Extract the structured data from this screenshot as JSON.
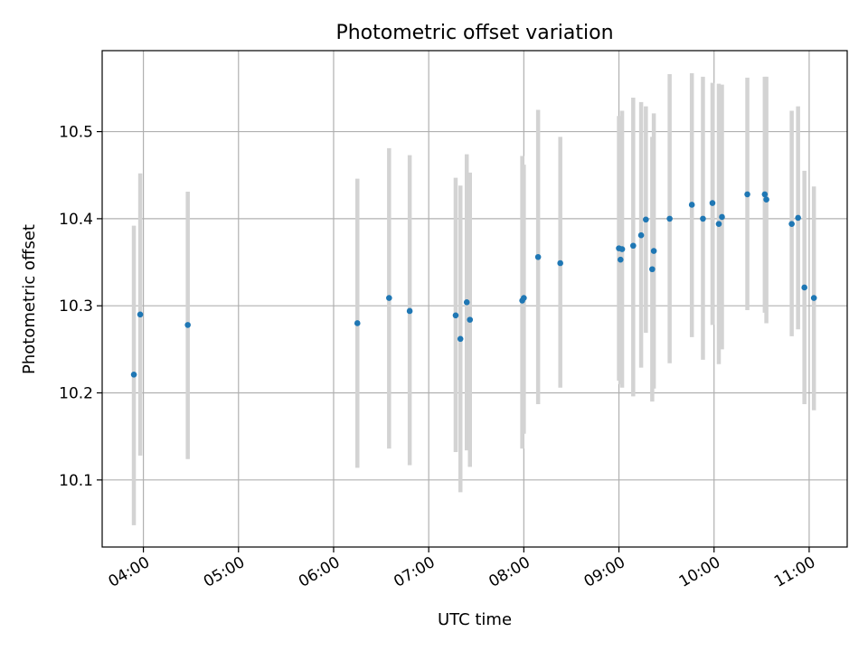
{
  "chart_data": {
    "type": "scatter",
    "title": "Photometric offset variation",
    "xlabel": "UTC time",
    "ylabel": "Photometric offset",
    "x_axis": {
      "kind": "time",
      "range": [
        "03:34",
        "11:24"
      ],
      "ticks": [
        "04:00",
        "05:00",
        "06:00",
        "07:00",
        "08:00",
        "09:00",
        "10:00",
        "11:00"
      ]
    },
    "y_axis": {
      "range": [
        10.023,
        10.593
      ],
      "ticks": [
        10.1,
        10.2,
        10.3,
        10.4,
        10.5
      ],
      "tick_labels": [
        "10.1",
        "10.2",
        "10.3",
        "10.4",
        "10.5"
      ]
    },
    "grid": true,
    "colors": {
      "point": "#1f77b4",
      "errorbar": "#d3d3d3"
    },
    "series": [
      {
        "points": [
          {
            "t": "03:54",
            "y": 10.221,
            "lo": 10.048,
            "hi": 10.392
          },
          {
            "t": "03:58",
            "y": 10.29,
            "lo": 10.128,
            "hi": 10.452
          },
          {
            "t": "04:28",
            "y": 10.278,
            "lo": 10.124,
            "hi": 10.431
          },
          {
            "t": "06:15",
            "y": 10.28,
            "lo": 10.114,
            "hi": 10.446
          },
          {
            "t": "06:35",
            "y": 10.309,
            "lo": 10.136,
            "hi": 10.481
          },
          {
            "t": "06:48",
            "y": 10.294,
            "lo": 10.117,
            "hi": 10.473
          },
          {
            "t": "07:17",
            "y": 10.289,
            "lo": 10.132,
            "hi": 10.447
          },
          {
            "t": "07:20",
            "y": 10.262,
            "lo": 10.086,
            "hi": 10.438
          },
          {
            "t": "07:24",
            "y": 10.304,
            "lo": 10.134,
            "hi": 10.474
          },
          {
            "t": "07:26",
            "y": 10.284,
            "lo": 10.115,
            "hi": 10.453
          },
          {
            "t": "07:59",
            "y": 10.306,
            "lo": 10.136,
            "hi": 10.472
          },
          {
            "t": "08:00",
            "y": 10.309,
            "lo": 10.153,
            "hi": 10.462
          },
          {
            "t": "08:09",
            "y": 10.356,
            "lo": 10.187,
            "hi": 10.525
          },
          {
            "t": "08:23",
            "y": 10.349,
            "lo": 10.206,
            "hi": 10.494
          },
          {
            "t": "09:00",
            "y": 10.366,
            "lo": 10.214,
            "hi": 10.518
          },
          {
            "t": "09:01",
            "y": 10.353,
            "lo": 10.21,
            "hi": 10.497
          },
          {
            "t": "09:02",
            "y": 10.365,
            "lo": 10.206,
            "hi": 10.524
          },
          {
            "t": "09:09",
            "y": 10.369,
            "lo": 10.196,
            "hi": 10.539
          },
          {
            "t": "09:14",
            "y": 10.381,
            "lo": 10.229,
            "hi": 10.534
          },
          {
            "t": "09:17",
            "y": 10.399,
            "lo": 10.269,
            "hi": 10.529
          },
          {
            "t": "09:21",
            "y": 10.342,
            "lo": 10.19,
            "hi": 10.494
          },
          {
            "t": "09:22",
            "y": 10.363,
            "lo": 10.205,
            "hi": 10.521
          },
          {
            "t": "09:32",
            "y": 10.4,
            "lo": 10.234,
            "hi": 10.566
          },
          {
            "t": "09:46",
            "y": 10.416,
            "lo": 10.264,
            "hi": 10.567
          },
          {
            "t": "09:53",
            "y": 10.4,
            "lo": 10.238,
            "hi": 10.563
          },
          {
            "t": "09:59",
            "y": 10.418,
            "lo": 10.278,
            "hi": 10.556
          },
          {
            "t": "10:03",
            "y": 10.394,
            "lo": 10.233,
            "hi": 10.555
          },
          {
            "t": "10:05",
            "y": 10.402,
            "lo": 10.25,
            "hi": 10.554
          },
          {
            "t": "10:21",
            "y": 10.428,
            "lo": 10.295,
            "hi": 10.562
          },
          {
            "t": "10:32",
            "y": 10.428,
            "lo": 10.292,
            "hi": 10.563
          },
          {
            "t": "10:33",
            "y": 10.422,
            "lo": 10.28,
            "hi": 10.563
          },
          {
            "t": "10:49",
            "y": 10.394,
            "lo": 10.265,
            "hi": 10.524
          },
          {
            "t": "10:53",
            "y": 10.401,
            "lo": 10.273,
            "hi": 10.529
          },
          {
            "t": "10:57",
            "y": 10.321,
            "lo": 10.187,
            "hi": 10.455
          },
          {
            "t": "11:03",
            "y": 10.309,
            "lo": 10.18,
            "hi": 10.437
          }
        ]
      }
    ]
  }
}
